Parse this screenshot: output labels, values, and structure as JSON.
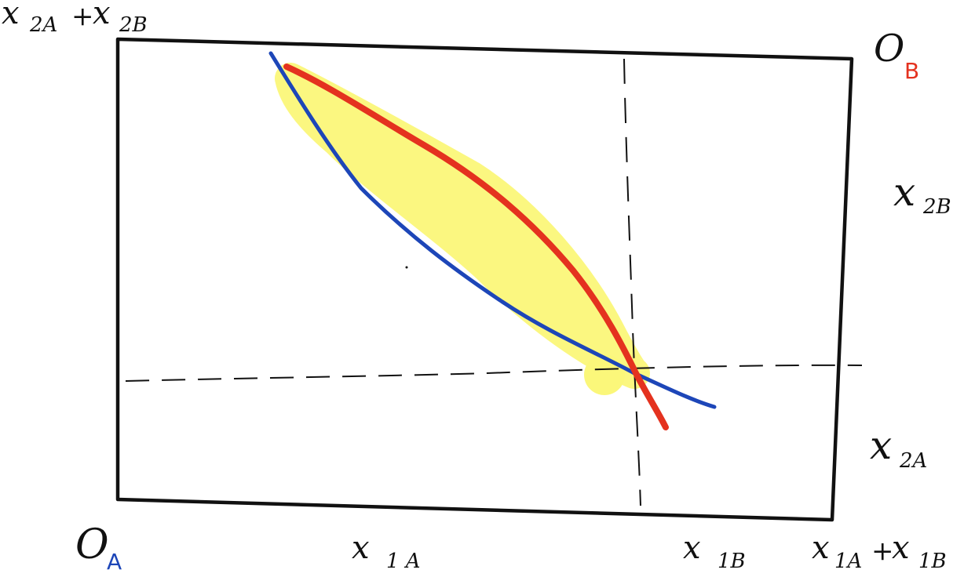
{
  "diagram": {
    "colors": {
      "box": "#111111",
      "guide": "#111111",
      "blue_curve": "#1d46b8",
      "red_curve": "#e4321f",
      "highlight": "#fbf77a",
      "origin_a_sub": "#1d46b8",
      "origin_b_sub": "#e4321f",
      "background": "#ffffff"
    },
    "labels": {
      "top_left": {
        "main": "x",
        "sub1": "2A",
        "plus": "+",
        "main2": "x",
        "sub2": "2B"
      },
      "origin_b": {
        "main": "O",
        "sub": "B"
      },
      "right_upper": {
        "main": "x",
        "sub": "2B"
      },
      "right_lower": {
        "main": "x",
        "sub": "2A"
      },
      "origin_a": {
        "main": "O",
        "sub": "A"
      },
      "bottom_mid": {
        "main": "x",
        "sub": "1 A"
      },
      "bottom_b": {
        "main": "x",
        "sub": "1B"
      },
      "bottom_right": {
        "main": "x",
        "sub1": "1A",
        "plus": "+",
        "main2": "x",
        "sub2": "1B"
      }
    },
    "icons": [
      "blue-indifference-curve",
      "red-indifference-curve",
      "highlighted-lens"
    ]
  }
}
